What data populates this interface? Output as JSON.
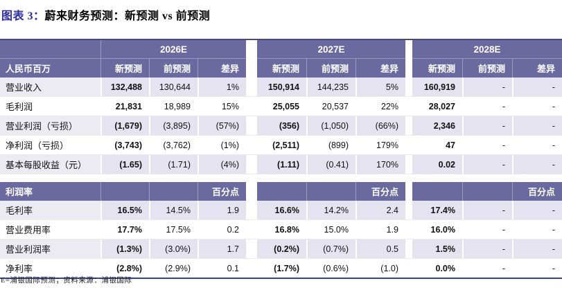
{
  "title": {
    "prefix": "图表 3：",
    "text": "蔚来财务预测：新预测 vs 前预测"
  },
  "colors": {
    "header_bg": "#6B6AA0",
    "row_stripe": "#E4E3EF",
    "top_rule": "#474C6E",
    "bottom_rule": "#33439B",
    "title_prefix_blue": "#2C2CA6"
  },
  "table1": {
    "unit_label": "人民币百万",
    "year_groups": [
      "2026E",
      "2027E",
      "2028E"
    ],
    "sub_headers": [
      "新预测",
      "前预测",
      "差异"
    ],
    "rows": [
      {
        "label": "营业收入",
        "y2026": [
          "132,488",
          "130,644",
          "1%"
        ],
        "y2027": [
          "150,914",
          "144,235",
          "5%"
        ],
        "y2028": [
          "160,919",
          "-",
          "-"
        ]
      },
      {
        "label": "毛利润",
        "y2026": [
          "21,831",
          "18,989",
          "15%"
        ],
        "y2027": [
          "25,055",
          "20,537",
          "22%"
        ],
        "y2028": [
          "28,027",
          "-",
          "-"
        ]
      },
      {
        "label": "营业利润（亏损）",
        "y2026": [
          "(1,679)",
          "(3,895)",
          "(57%)"
        ],
        "y2027": [
          "(356)",
          "(1,050)",
          "(66%)"
        ],
        "y2028": [
          "2,346",
          "-",
          "-"
        ]
      },
      {
        "label": "净利润（亏损）",
        "y2026": [
          "(3,743)",
          "(3,762)",
          "(1%)"
        ],
        "y2027": [
          "(2,511)",
          "(899)",
          "179%"
        ],
        "y2028": [
          "47",
          "-",
          "-"
        ]
      },
      {
        "label": "基本每股收益（元）",
        "y2026": [
          "(1.65)",
          "(1.71)",
          "(4%)"
        ],
        "y2027": [
          "(1.11)",
          "(0.41)",
          "170%"
        ],
        "y2028": [
          "0.02",
          "-",
          "-"
        ]
      }
    ]
  },
  "table2": {
    "section_label": "利润率",
    "diff_header": "百分点",
    "rows": [
      {
        "label": "毛利率",
        "y2026": [
          "16.5%",
          "14.5%",
          "1.9"
        ],
        "y2027": [
          "16.6%",
          "14.2%",
          "2.4"
        ],
        "y2028": [
          "17.4%",
          "-",
          "-"
        ]
      },
      {
        "label": "营业费用率",
        "y2026": [
          "17.7%",
          "17.5%",
          "0.2"
        ],
        "y2027": [
          "16.8%",
          "15.0%",
          "1.9"
        ],
        "y2028": [
          "16.0%",
          "-",
          "-"
        ]
      },
      {
        "label": "营业利润率",
        "y2026": [
          "(1.3%)",
          "(3.0%)",
          "1.7"
        ],
        "y2027": [
          "(0.2%)",
          "(0.7%)",
          "0.5"
        ],
        "y2028": [
          "1.5%",
          "-",
          "-"
        ]
      },
      {
        "label": "净利率",
        "y2026": [
          "(2.8%)",
          "(2.9%)",
          "0.1"
        ],
        "y2027": [
          "(1.7%)",
          "(0.6%)",
          "(1.0)"
        ],
        "y2028": [
          "0.0%",
          "-",
          "-"
        ]
      }
    ]
  },
  "footer": "E=浦银国际预测；资料来源：浦银国际"
}
